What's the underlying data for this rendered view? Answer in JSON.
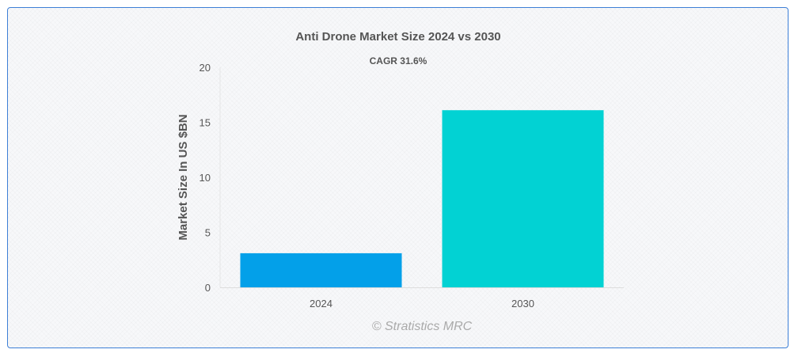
{
  "chart_data": {
    "type": "bar",
    "title": "Anti Drone Market Size 2024 vs 2030",
    "subtitle": "CAGR 31.6%",
    "xlabel": "",
    "ylabel": "Market Size In US $BN",
    "categories": [
      "2024",
      "2030"
    ],
    "values": [
      3.1,
      16.1
    ],
    "ylim": [
      0,
      20
    ],
    "yticks": [
      0,
      5,
      10,
      15,
      20
    ],
    "colors": [
      "#03a0e9",
      "#02d2d3"
    ],
    "grid": false,
    "legend": "none"
  },
  "credit": "© Stratistics MRC"
}
